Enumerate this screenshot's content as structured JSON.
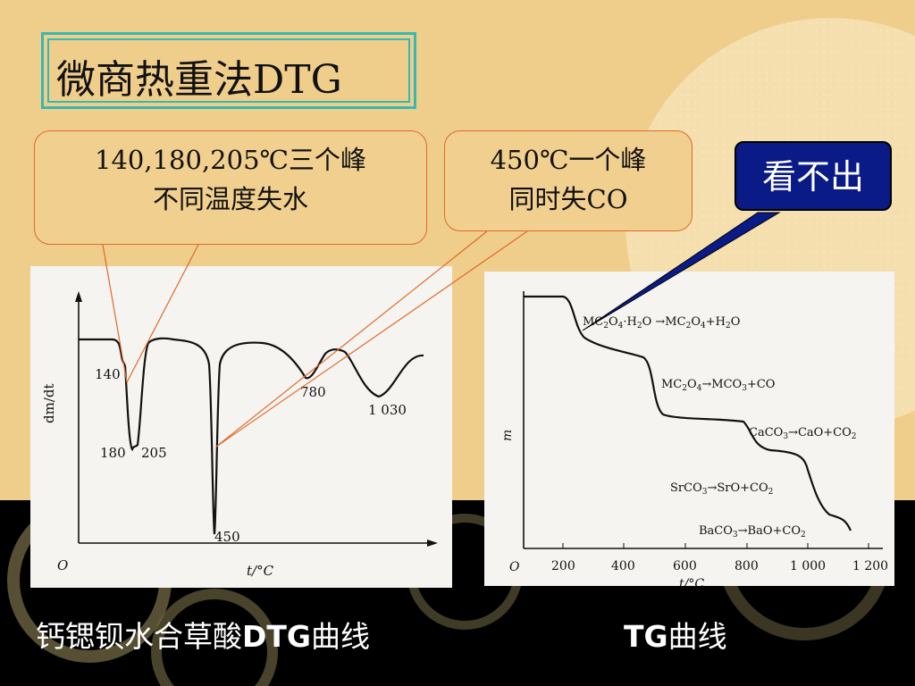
{
  "slide": {
    "title": "微商热重法DTG",
    "callout_left": {
      "line1": "140,180,205℃三个峰",
      "line2": "不同温度失水"
    },
    "callout_right": {
      "line1": "450℃一个峰",
      "line2": "同时失CO"
    },
    "badge": "看不出",
    "caption_dtg": {
      "prefix": "钙锶钡水合草酸",
      "bold": "DTG",
      "suffix": "曲线"
    },
    "caption_tg": {
      "bold": "TG",
      "suffix": "曲线"
    }
  },
  "colors": {
    "background": "#efcd8b",
    "title_border": "#36b9b3",
    "callout_border": "#e06a2a",
    "badge": "#0a1a87",
    "band": "#000000"
  },
  "chart_data": [
    {
      "type": "line",
      "ylabel": "dm/dt",
      "xlabel": "t/°C",
      "origin_label": "O",
      "peak_labels": [
        "140",
        "180",
        "205",
        "450",
        "780",
        "1 030"
      ],
      "peaks_x": [
        140,
        180,
        205,
        450,
        780,
        1030
      ]
    },
    {
      "type": "line",
      "ylabel": "m",
      "xlabel": "t/°C",
      "origin_label": "O",
      "x_ticks": [
        "200",
        "400",
        "600",
        "800",
        "1 000",
        "1 200"
      ],
      "xlim": [
        0,
        1200
      ],
      "annotations": [
        {
          "main": "MC",
          "sub1": "2",
          "mid": "O",
          "sub2": "4",
          "rest": "·H",
          "sub3": "2",
          "tail": "O →MC",
          "sub4": "2",
          "tail2": "O",
          "sub5": "4",
          "tail3": "+H",
          "sub6": "2",
          "tail4": "O"
        },
        {
          "main": "MC",
          "sub1": "2",
          "mid": "O",
          "sub2": "4",
          "rest": "→MCO",
          "sub3": "3",
          "tail": "+CO"
        },
        {
          "main": "CaCO",
          "sub1": "3",
          "mid": "→CaO+CO",
          "sub2": "2"
        },
        {
          "main": "SrCO",
          "sub1": "3",
          "mid": "→SrO+CO",
          "sub2": "2"
        },
        {
          "main": "BaCO",
          "sub1": "3",
          "mid": "→BaO+CO",
          "sub2": "2"
        }
      ]
    }
  ]
}
